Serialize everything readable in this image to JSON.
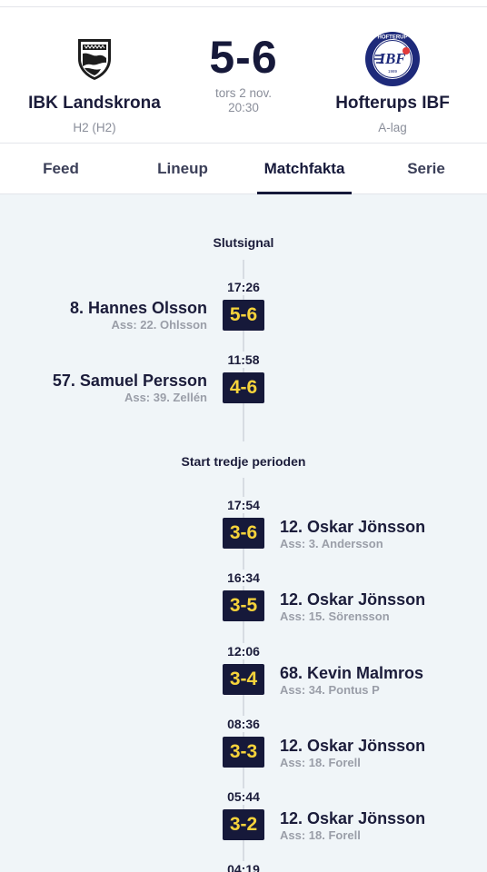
{
  "match": {
    "home": {
      "name": "IBK Landskrona",
      "league": "H2 (H2)",
      "logo": "ibk-landskrona-shield-icon"
    },
    "away": {
      "name": "Hofterups IBF",
      "league": "A-lag",
      "logo": "hofterups-ibf-badge-icon",
      "logo_text": "IBF",
      "logo_ring": "HOFTERUP",
      "logo_year": "1989"
    },
    "score": "5-6",
    "date": "tors 2 nov.",
    "time": "20:30"
  },
  "tabs": [
    {
      "label": "Feed",
      "active": false
    },
    {
      "label": "Lineup",
      "active": false
    },
    {
      "label": "Matchfakta",
      "active": true
    },
    {
      "label": "Serie",
      "active": false
    }
  ],
  "timeline": {
    "sections": [
      {
        "title": "Slutsignal"
      },
      {
        "title": "Start tredje perioden"
      }
    ],
    "goals": [
      {
        "time": "17:26",
        "score": "5-6",
        "side": "home",
        "scorer": "8. Hannes Olsson",
        "assist": "Ass: 22. Ohlsson"
      },
      {
        "time": "11:58",
        "score": "4-6",
        "side": "home",
        "scorer": "57. Samuel Persson",
        "assist": "Ass: 39. Zellén"
      },
      {
        "time": "17:54",
        "score": "3-6",
        "side": "away",
        "scorer": "12. Oskar Jönsson",
        "assist": "Ass: 3. Andersson"
      },
      {
        "time": "16:34",
        "score": "3-5",
        "side": "away",
        "scorer": "12. Oskar Jönsson",
        "assist": "Ass: 15. Sörensson"
      },
      {
        "time": "12:06",
        "score": "3-4",
        "side": "away",
        "scorer": "68. Kevin Malmros",
        "assist": "Ass: 34. Pontus P"
      },
      {
        "time": "08:36",
        "score": "3-3",
        "side": "away",
        "scorer": "12. Oskar Jönsson",
        "assist": "Ass: 18. Forell"
      },
      {
        "time": "05:44",
        "score": "3-2",
        "side": "away",
        "scorer": "12. Oskar Jönsson",
        "assist": "Ass: 18. Forell"
      },
      {
        "time": "04:19"
      }
    ]
  },
  "colors": {
    "navy": "#16193a",
    "badge_text": "#f6d33b",
    "muted": "#8a8e9a",
    "background": "#f0f5f8"
  }
}
